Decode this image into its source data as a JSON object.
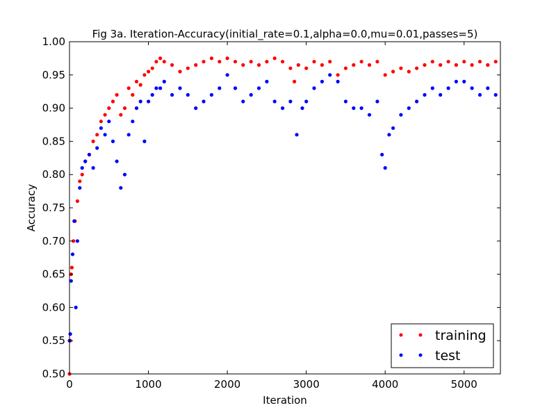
{
  "chart_data": {
    "type": "scatter",
    "title": "Fig 3a. Iteration-Accuracy(initial_rate=0.1,alpha=0.0,mu=0.01,passes=5)",
    "xlabel": "Iteration",
    "ylabel": "Accuracy",
    "xlim": [
      0,
      5460
    ],
    "ylim": [
      0.5,
      1.0
    ],
    "xticks": [
      0,
      1000,
      2000,
      3000,
      4000,
      5000
    ],
    "xtick_labels": [
      "0",
      "1000",
      "2000",
      "3000",
      "4000",
      "5000"
    ],
    "yticks": [
      0.5,
      0.55,
      0.6,
      0.65,
      0.7,
      0.75,
      0.8,
      0.85,
      0.9,
      0.95,
      1.0
    ],
    "ytick_labels": [
      "0.50",
      "0.55",
      "0.60",
      "0.65",
      "0.70",
      "0.75",
      "0.80",
      "0.85",
      "0.90",
      "0.95",
      "1.00"
    ],
    "grid": false,
    "legend_position": "bottom-right",
    "series": [
      {
        "name": "training",
        "color": "#ff0000",
        "x": [
          0,
          10,
          20,
          30,
          50,
          70,
          100,
          130,
          160,
          200,
          250,
          300,
          350,
          400,
          450,
          500,
          550,
          600,
          650,
          700,
          750,
          800,
          850,
          900,
          950,
          1000,
          1050,
          1100,
          1150,
          1200,
          1300,
          1400,
          1500,
          1600,
          1700,
          1800,
          1900,
          2000,
          2100,
          2200,
          2300,
          2400,
          2500,
          2600,
          2700,
          2800,
          2850,
          2900,
          3000,
          3100,
          3200,
          3300,
          3400,
          3500,
          3600,
          3700,
          3800,
          3900,
          4000,
          4100,
          4200,
          4300,
          4400,
          4500,
          4600,
          4700,
          4800,
          4900,
          5000,
          5100,
          5200,
          5300,
          5400
        ],
        "values": [
          0.5,
          0.55,
          0.65,
          0.66,
          0.7,
          0.73,
          0.76,
          0.79,
          0.8,
          0.82,
          0.83,
          0.85,
          0.86,
          0.88,
          0.89,
          0.9,
          0.91,
          0.92,
          0.89,
          0.9,
          0.93,
          0.92,
          0.94,
          0.935,
          0.95,
          0.955,
          0.96,
          0.97,
          0.975,
          0.97,
          0.965,
          0.955,
          0.96,
          0.965,
          0.97,
          0.975,
          0.97,
          0.975,
          0.97,
          0.965,
          0.97,
          0.965,
          0.97,
          0.975,
          0.97,
          0.96,
          0.94,
          0.965,
          0.96,
          0.97,
          0.965,
          0.97,
          0.95,
          0.96,
          0.965,
          0.97,
          0.965,
          0.97,
          0.95,
          0.955,
          0.96,
          0.955,
          0.96,
          0.965,
          0.97,
          0.965,
          0.97,
          0.965,
          0.97,
          0.965,
          0.97,
          0.965,
          0.97
        ]
      },
      {
        "name": "test",
        "color": "#0000ff",
        "x": [
          0,
          10,
          20,
          40,
          60,
          80,
          100,
          130,
          160,
          200,
          250,
          300,
          350,
          400,
          450,
          500,
          550,
          600,
          650,
          700,
          750,
          800,
          850,
          900,
          950,
          1000,
          1050,
          1100,
          1150,
          1200,
          1300,
          1400,
          1500,
          1600,
          1700,
          1800,
          1900,
          2000,
          2100,
          2200,
          2300,
          2400,
          2500,
          2600,
          2700,
          2800,
          2880,
          2950,
          3000,
          3100,
          3200,
          3300,
          3400,
          3500,
          3600,
          3700,
          3800,
          3900,
          3960,
          4000,
          4050,
          4100,
          4200,
          4300,
          4400,
          4500,
          4600,
          4700,
          4800,
          4900,
          5000,
          5100,
          5200,
          5300,
          5400
        ],
        "values": [
          0.55,
          0.56,
          0.64,
          0.68,
          0.73,
          0.6,
          0.7,
          0.78,
          0.81,
          0.82,
          0.83,
          0.81,
          0.84,
          0.87,
          0.86,
          0.88,
          0.85,
          0.82,
          0.78,
          0.8,
          0.86,
          0.88,
          0.9,
          0.91,
          0.85,
          0.91,
          0.92,
          0.93,
          0.93,
          0.94,
          0.92,
          0.93,
          0.92,
          0.9,
          0.91,
          0.92,
          0.93,
          0.95,
          0.93,
          0.91,
          0.92,
          0.93,
          0.94,
          0.91,
          0.9,
          0.91,
          0.86,
          0.9,
          0.91,
          0.93,
          0.94,
          0.95,
          0.94,
          0.91,
          0.9,
          0.9,
          0.89,
          0.91,
          0.83,
          0.81,
          0.86,
          0.87,
          0.89,
          0.9,
          0.91,
          0.92,
          0.93,
          0.92,
          0.93,
          0.94,
          0.94,
          0.93,
          0.92,
          0.93,
          0.92
        ]
      }
    ]
  }
}
